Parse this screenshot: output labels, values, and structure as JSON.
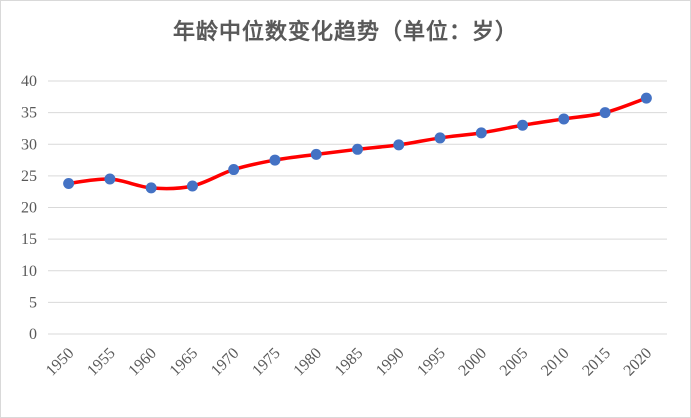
{
  "chart_data": {
    "type": "line",
    "title": "年龄中位数变化趋势（单位：岁）",
    "xlabel": "",
    "ylabel": "",
    "x": [
      "1950",
      "1955",
      "1960",
      "1965",
      "1970",
      "1975",
      "1980",
      "1985",
      "1990",
      "1995",
      "2000",
      "2005",
      "2010",
      "2015",
      "2020"
    ],
    "series": [
      {
        "values": [
          23.8,
          24.5,
          23.1,
          23.4,
          26.0,
          27.5,
          28.4,
          29.2,
          29.9,
          31.0,
          31.8,
          33.0,
          34.0,
          35.0,
          37.3
        ]
      }
    ],
    "ylim": [
      0,
      40
    ],
    "yticks": [
      "0",
      "5",
      "10",
      "15",
      "20",
      "25",
      "30",
      "35",
      "40"
    ],
    "grid": true,
    "legend": "none",
    "colors": {
      "line": "#ff0000",
      "marker": "#4472c4",
      "grid": "#d9d9d9",
      "text": "#595959"
    }
  }
}
